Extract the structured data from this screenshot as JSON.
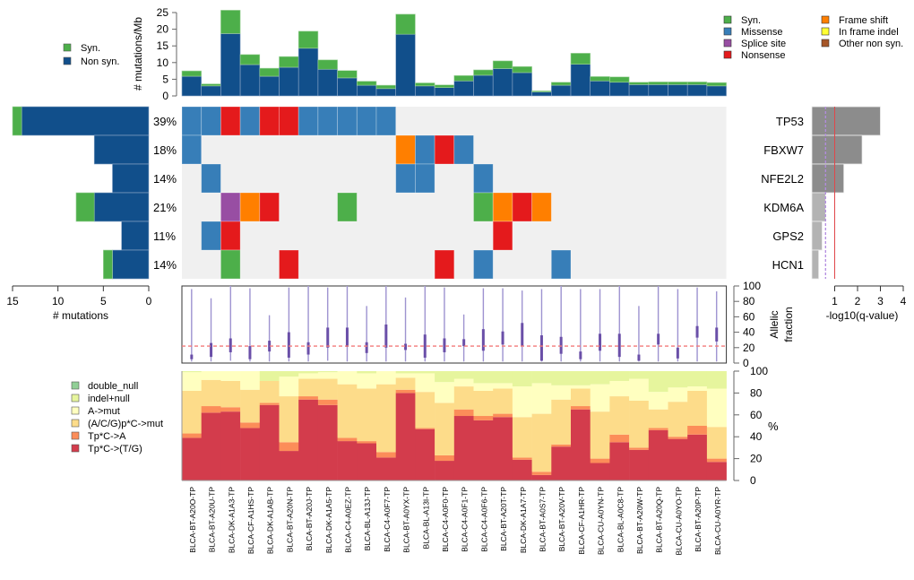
{
  "chart_data": {
    "type": "oncoprint",
    "samples": [
      "BLCA-BT-A20O-TP",
      "BLCA-BT-A20U-TP",
      "BLCA-DK-A1A3-TP",
      "BLCA-CF-A1HS-TP",
      "BLCA-DK-A1AB-TP",
      "BLCA-BT-A20N-TP",
      "BLCA-BT-A20J-TP",
      "BLCA-DK-A1A5-TP",
      "BLCA-C4-A0EZ-TP",
      "BLCA-BL-A13J-TP",
      "BLCA-C4-A0F7-TP",
      "BLCA-BT-A0YX-TP",
      "BLCA-BL-A13I-TP",
      "BLCA-C4-A0F0-TP",
      "BLCA-C4-A0F1-TP",
      "BLCA-C4-A0F6-TP",
      "BLCA-BT-A20T-TP",
      "BLCA-DK-A1A7-TP",
      "BLCA-BT-A0S7-TP",
      "BLCA-BT-A20V-TP",
      "BLCA-CF-A1HR-TP",
      "BLCA-CU-A0YN-TP",
      "BLCA-BL-A0C8-TP",
      "BLCA-BT-A20W-TP",
      "BLCA-BT-A20Q-TP",
      "BLCA-CU-A0YO-TP",
      "BLCA-BT-A20P-TP",
      "BLCA-CU-A0YR-TP"
    ],
    "mutation_rate": {
      "ylabel": "# mutations/Mb",
      "ylim": [
        0,
        25
      ],
      "yticks": [
        "0",
        "5",
        "10",
        "15",
        "20",
        "25"
      ],
      "non_syn": [
        5.9,
        3.0,
        18.7,
        9.4,
        5.9,
        8.6,
        14.3,
        8.0,
        5.4,
        3.2,
        2.2,
        18.5,
        3.0,
        2.5,
        4.5,
        6.2,
        8.2,
        7.0,
        1.2,
        3.2,
        9.5,
        4.5,
        4.1,
        3.4,
        3.4,
        3.4,
        3.4,
        3.0
      ],
      "syn": [
        1.6,
        0.6,
        7.0,
        3.0,
        2.4,
        3.2,
        5.1,
        2.8,
        2.2,
        1.2,
        1.0,
        6.0,
        0.9,
        0.8,
        1.6,
        1.6,
        2.3,
        1.8,
        0.3,
        0.9,
        3.3,
        1.3,
        1.6,
        0.7,
        0.8,
        0.8,
        0.8,
        1.0
      ]
    },
    "genes": [
      {
        "name": "TP53",
        "pct": "39%",
        "non_syn": 14,
        "syn": 1,
        "neg_log10_q": 3.0,
        "significant": true
      },
      {
        "name": "FBXW7",
        "pct": "18%",
        "non_syn": 6,
        "syn": 0,
        "neg_log10_q": 2.2,
        "significant": true
      },
      {
        "name": "NFE2L2",
        "pct": "14%",
        "non_syn": 4,
        "syn": 0,
        "neg_log10_q": 1.4,
        "significant": true
      },
      {
        "name": "KDM6A",
        "pct": "21%",
        "non_syn": 6,
        "syn": 2,
        "neg_log10_q": 0.6,
        "significant": false
      },
      {
        "name": "GPS2",
        "pct": "11%",
        "non_syn": 3,
        "syn": 0,
        "neg_log10_q": 0.45,
        "significant": false
      },
      {
        "name": "HCN1",
        "pct": "14%",
        "non_syn": 4,
        "syn": 1,
        "neg_log10_q": 0.3,
        "significant": false
      }
    ],
    "matrix": [
      [
        "M",
        "M",
        "N",
        "M",
        "N",
        "N",
        "M",
        "M",
        "M",
        "M",
        "M",
        "",
        "",
        "",
        "",
        "",
        "",
        "",
        "",
        "",
        "",
        "",
        "",
        "",
        "",
        "",
        "",
        ""
      ],
      [
        "M",
        "",
        "",
        "",
        "",
        "",
        "",
        "",
        "",
        "",
        "",
        "F",
        "M",
        "N",
        "M",
        "",
        "",
        "",
        "",
        "",
        "",
        "",
        "",
        "",
        "",
        "",
        "",
        ""
      ],
      [
        "",
        "M",
        "",
        "",
        "",
        "",
        "",
        "",
        "",
        "",
        "",
        "M",
        "M",
        "",
        "",
        "M",
        "",
        "",
        "",
        "",
        "",
        "",
        "",
        "",
        "",
        "",
        "",
        ""
      ],
      [
        "",
        "",
        "P",
        "F",
        "N",
        "",
        "",
        "",
        "S",
        "",
        "",
        "",
        "",
        "",
        "",
        "S",
        "F",
        "N",
        "F",
        "",
        "",
        "",
        "",
        "",
        "",
        "",
        "",
        ""
      ],
      [
        "",
        "M",
        "N",
        "",
        "",
        "",
        "",
        "",
        "",
        "",
        "",
        "",
        "",
        "",
        "",
        "",
        "N",
        "",
        "",
        "",
        "",
        "",
        "",
        "",
        "",
        "",
        "",
        ""
      ],
      [
        "",
        "",
        "S",
        "",
        "",
        "N",
        "",
        "",
        "",
        "",
        "",
        "",
        "",
        "N",
        "",
        "M",
        "",
        "",
        "",
        "M",
        "",
        "",
        "",
        "",
        "",
        "",
        "",
        ""
      ]
    ],
    "matrix_codes": {
      "M": "Missense",
      "N": "Nonsense",
      "F": "Frame shift",
      "S": "Syn.",
      "P": "Splice site",
      "I": "In frame indel",
      "O": "Other non syn."
    },
    "left_bar_xlabel": "# mutations",
    "left_bar_xticks": [
      "15",
      "10",
      "5",
      "0"
    ],
    "left_bar_xlim": [
      0,
      15
    ],
    "qvalue_xlabel": "-log10(q-value)",
    "qvalue_xticks": [
      "1",
      "2",
      "3",
      "4"
    ],
    "qvalue_xlim": [
      0,
      4
    ],
    "qvalue_threshold": 1,
    "qvalue_dashed": 0.6,
    "allelic_fraction": {
      "ylabel": [
        "Allelic",
        "fraction"
      ],
      "ylim": [
        0,
        100
      ],
      "yticks": [
        "0",
        "20",
        "40",
        "60",
        "80",
        "100"
      ],
      "reference_line": 22,
      "range": [
        [
          2,
          96
        ],
        [
          2,
          84
        ],
        [
          3,
          100
        ],
        [
          2,
          97
        ],
        [
          2,
          62
        ],
        [
          2,
          98
        ],
        [
          2,
          100
        ],
        [
          3,
          98
        ],
        [
          2,
          100
        ],
        [
          2,
          74
        ],
        [
          2,
          100
        ],
        [
          2,
          85
        ],
        [
          2,
          100
        ],
        [
          2,
          98
        ],
        [
          2,
          63
        ],
        [
          2,
          97
        ],
        [
          2,
          97
        ],
        [
          2,
          94
        ],
        [
          2,
          96
        ],
        [
          2,
          100
        ],
        [
          2,
          96
        ],
        [
          2,
          96
        ],
        [
          2,
          100
        ],
        [
          2,
          74
        ],
        [
          2,
          100
        ],
        [
          2,
          96
        ],
        [
          2,
          98
        ],
        [
          2,
          93
        ]
      ],
      "iqr": [
        [
          5,
          11
        ],
        [
          8,
          26
        ],
        [
          14,
          32
        ],
        [
          5,
          22
        ],
        [
          15,
          29
        ],
        [
          7,
          40
        ],
        [
          11,
          27
        ],
        [
          20,
          46
        ],
        [
          21,
          46
        ],
        [
          13,
          27
        ],
        [
          20,
          50
        ],
        [
          17,
          25
        ],
        [
          7,
          37
        ],
        [
          14,
          32
        ],
        [
          22,
          31
        ],
        [
          16,
          44
        ],
        [
          24,
          41
        ],
        [
          22,
          52
        ],
        [
          3,
          36
        ],
        [
          12,
          34
        ],
        [
          5,
          15
        ],
        [
          16,
          38
        ],
        [
          8,
          38
        ],
        [
          3,
          11
        ],
        [
          24,
          38
        ],
        [
          6,
          20
        ],
        [
          33,
          48
        ],
        [
          28,
          46
        ]
      ]
    },
    "spectrum": {
      "ylabel": "%",
      "ylim": [
        0,
        100
      ],
      "yticks": [
        "0",
        "20",
        "40",
        "60",
        "80",
        "100"
      ],
      "categories": [
        "Tp*C->(T/G)",
        "Tp*C->A",
        "(A/C/G)p*C->mut",
        "A->mut",
        "indel+null",
        "double_null"
      ],
      "colors": [
        "#d33c4c",
        "#fc8d59",
        "#fddc8a",
        "#ffffc0",
        "#e6f59d",
        "#91cf96"
      ],
      "values": [
        [
          39,
          4,
          39,
          17,
          1,
          0
        ],
        [
          62,
          6,
          24,
          8,
          0,
          0
        ],
        [
          63,
          4,
          24,
          9,
          0,
          0
        ],
        [
          48,
          5,
          30,
          17,
          0,
          0
        ],
        [
          69,
          2,
          20,
          0,
          9,
          0
        ],
        [
          27,
          8,
          42,
          18,
          5,
          0
        ],
        [
          74,
          3,
          16,
          5,
          2,
          0
        ],
        [
          69,
          5,
          19,
          6,
          1,
          0
        ],
        [
          36,
          3,
          49,
          12,
          0,
          0
        ],
        [
          34,
          2,
          48,
          14,
          2,
          0
        ],
        [
          21,
          5,
          62,
          12,
          0,
          0
        ],
        [
          80,
          3,
          11,
          4,
          2,
          0
        ],
        [
          47,
          1,
          33,
          17,
          2,
          0
        ],
        [
          18,
          5,
          48,
          19,
          10,
          0
        ],
        [
          59,
          6,
          21,
          7,
          7,
          0
        ],
        [
          55,
          4,
          23,
          7,
          11,
          0
        ],
        [
          58,
          3,
          23,
          5,
          11,
          0
        ],
        [
          19,
          2,
          37,
          28,
          14,
          0
        ],
        [
          5,
          3,
          53,
          28,
          11,
          0
        ],
        [
          31,
          2,
          41,
          13,
          13,
          0
        ],
        [
          65,
          3,
          16,
          3,
          13,
          0
        ],
        [
          16,
          4,
          43,
          25,
          12,
          0
        ],
        [
          35,
          7,
          35,
          14,
          9,
          0
        ],
        [
          28,
          2,
          43,
          20,
          7,
          0
        ],
        [
          46,
          2,
          17,
          16,
          19,
          0
        ],
        [
          38,
          2,
          32,
          13,
          15,
          0
        ],
        [
          42,
          8,
          32,
          4,
          14,
          0
        ],
        [
          17,
          3,
          29,
          35,
          16,
          0
        ]
      ]
    }
  },
  "colors": {
    "syn": "#4daf4a",
    "non_syn_dark": "#114f8b",
    "missense": "#377eb8",
    "splice": "#984ea3",
    "nonsense": "#e41a1c",
    "frameshift": "#ff7f00",
    "inframe": "#ffff33",
    "other": "#a65628",
    "cell_bg": "#f0f0f0",
    "qbar_sig": "#8c8c8c",
    "qbar_nonsig": "#b3b3b3"
  },
  "legends": {
    "top_left": [
      {
        "label": "Syn.",
        "key": "syn"
      },
      {
        "label": "Non syn.",
        "key": "non_syn_dark"
      }
    ],
    "top_right_col1": [
      {
        "label": "Syn.",
        "key": "syn"
      },
      {
        "label": "Missense",
        "key": "missense"
      },
      {
        "label": "Splice site",
        "key": "splice"
      },
      {
        "label": "Nonsense",
        "key": "nonsense"
      }
    ],
    "top_right_col2": [
      {
        "label": "Frame shift",
        "key": "frameshift"
      },
      {
        "label": "In frame indel",
        "key": "inframe"
      },
      {
        "label": "Other non syn.",
        "key": "other"
      }
    ],
    "spectrum": [
      {
        "label": "double_null",
        "color": "#91cf96"
      },
      {
        "label": "indel+null",
        "color": "#e6f59d"
      },
      {
        "label": "A->mut",
        "color": "#ffffc0"
      },
      {
        "label": "(A/C/G)p*C->mut",
        "color": "#fddc8a"
      },
      {
        "label": "Tp*C->A",
        "color": "#fc8d59"
      },
      {
        "label": "Tp*C->(T/G)",
        "color": "#d33c4c"
      }
    ]
  }
}
